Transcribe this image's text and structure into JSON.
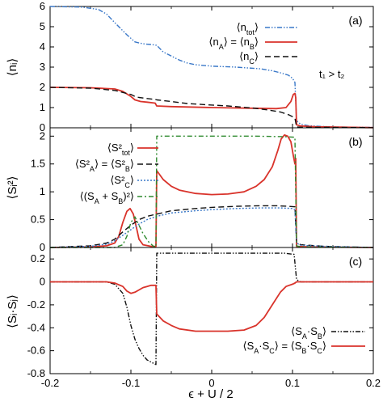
{
  "chart_data": [
    {
      "type": "line",
      "panel_label": "(a)",
      "ylabel": "⟨nᵢ⟩",
      "xlim": [
        -0.2,
        0.2
      ],
      "ylim": [
        0,
        6
      ],
      "x_ticks": [
        -0.2,
        -0.1,
        0,
        0.1,
        0.2
      ],
      "y_ticks": [
        0,
        1,
        2,
        3,
        4,
        5,
        6
      ],
      "y_tick_labels": [
        "0",
        "1",
        "2",
        "3",
        "4",
        "5",
        "6"
      ],
      "annotation": "t₁ > t₂",
      "legend_position": "top-right",
      "series": [
        {
          "name": "⟨n_tot⟩",
          "color": "#3a78c8",
          "dash": "dash-dot-dot",
          "points": [
            [
              -0.2,
              6.0
            ],
            [
              -0.16,
              5.97
            ],
            [
              -0.14,
              5.85
            ],
            [
              -0.13,
              5.62
            ],
            [
              -0.12,
              5.2
            ],
            [
              -0.115,
              5.0
            ],
            [
              -0.105,
              4.6
            ],
            [
              -0.095,
              4.25
            ],
            [
              -0.085,
              4.15
            ],
            [
              -0.075,
              4.12
            ],
            [
              -0.068,
              4.08
            ],
            [
              -0.06,
              3.75
            ],
            [
              -0.05,
              3.55
            ],
            [
              -0.04,
              3.35
            ],
            [
              -0.03,
              3.2
            ],
            [
              -0.02,
              3.12
            ],
            [
              0.0,
              3.05
            ],
            [
              0.03,
              3.0
            ],
            [
              0.06,
              2.92
            ],
            [
              0.075,
              2.82
            ],
            [
              0.085,
              2.72
            ],
            [
              0.095,
              2.6
            ],
            [
              0.1,
              2.45
            ],
            [
              0.103,
              2.25
            ],
            [
              0.105,
              0.35
            ],
            [
              0.11,
              0.18
            ],
            [
              0.12,
              0.1
            ],
            [
              0.15,
              0.04
            ],
            [
              0.2,
              0.02
            ]
          ]
        },
        {
          "name": "⟨n_A⟩ = ⟨n_B⟩",
          "color": "#d9332b",
          "dash": "solid",
          "points": [
            [
              -0.2,
              2.0
            ],
            [
              -0.15,
              1.98
            ],
            [
              -0.12,
              1.92
            ],
            [
              -0.11,
              1.8
            ],
            [
              -0.1,
              1.55
            ],
            [
              -0.095,
              1.38
            ],
            [
              -0.088,
              1.3
            ],
            [
              -0.08,
              1.27
            ],
            [
              -0.07,
              1.22
            ],
            [
              -0.068,
              1.08
            ],
            [
              -0.05,
              1.05
            ],
            [
              0.0,
              1.0
            ],
            [
              0.05,
              0.97
            ],
            [
              0.08,
              0.95
            ],
            [
              0.092,
              1.0
            ],
            [
              0.098,
              1.3
            ],
            [
              0.101,
              1.65
            ],
            [
              0.103,
              1.7
            ],
            [
              0.104,
              1.5
            ],
            [
              0.105,
              0.15
            ],
            [
              0.11,
              0.09
            ],
            [
              0.13,
              0.05
            ],
            [
              0.2,
              0.01
            ]
          ]
        },
        {
          "name": "⟨n_C⟩",
          "color": "#111111",
          "dash": "dashed",
          "points": [
            [
              -0.2,
              2.0
            ],
            [
              -0.15,
              1.96
            ],
            [
              -0.12,
              1.85
            ],
            [
              -0.1,
              1.65
            ],
            [
              -0.095,
              1.55
            ],
            [
              -0.09,
              1.5
            ],
            [
              -0.08,
              1.45
            ],
            [
              -0.07,
              1.4
            ],
            [
              -0.068,
              1.38
            ],
            [
              -0.05,
              1.3
            ],
            [
              -0.03,
              1.2
            ],
            [
              -0.01,
              1.15
            ],
            [
              0.02,
              1.08
            ],
            [
              0.05,
              0.98
            ],
            [
              0.07,
              0.88
            ],
            [
              0.085,
              0.78
            ],
            [
              0.095,
              0.65
            ],
            [
              0.1,
              0.55
            ],
            [
              0.103,
              0.48
            ],
            [
              0.105,
              0.05
            ],
            [
              0.11,
              0.03
            ],
            [
              0.2,
              0.01
            ]
          ]
        }
      ]
    },
    {
      "type": "line",
      "panel_label": "(b)",
      "ylabel": "⟨Sᵢ²⟩",
      "xlim": [
        -0.2,
        0.2
      ],
      "ylim": [
        0,
        2.15
      ],
      "x_ticks": [
        -0.2,
        -0.1,
        0,
        0.1,
        0.2
      ],
      "y_ticks": [
        0,
        0.5,
        1,
        1.5,
        2
      ],
      "y_tick_labels": [
        "0",
        "0.5",
        "1",
        "1.5",
        "2"
      ],
      "legend_position": "top-left",
      "series": [
        {
          "name": "⟨S²_tot⟩",
          "color": "#d9332b",
          "dash": "solid",
          "points": [
            [
              -0.2,
              0.0
            ],
            [
              -0.15,
              0.01
            ],
            [
              -0.13,
              0.03
            ],
            [
              -0.12,
              0.08
            ],
            [
              -0.115,
              0.2
            ],
            [
              -0.11,
              0.45
            ],
            [
              -0.105,
              0.65
            ],
            [
              -0.101,
              0.7
            ],
            [
              -0.097,
              0.6
            ],
            [
              -0.093,
              0.35
            ],
            [
              -0.09,
              0.15
            ],
            [
              -0.085,
              0.05
            ],
            [
              -0.075,
              0.02
            ],
            [
              -0.069,
              0.02
            ],
            [
              -0.068,
              1.38
            ],
            [
              -0.06,
              1.22
            ],
            [
              -0.05,
              1.1
            ],
            [
              -0.04,
              1.03
            ],
            [
              -0.02,
              0.97
            ],
            [
              0.0,
              0.95
            ],
            [
              0.02,
              0.96
            ],
            [
              0.04,
              1.0
            ],
            [
              0.055,
              1.1
            ],
            [
              0.065,
              1.22
            ],
            [
              0.075,
              1.45
            ],
            [
              0.082,
              1.75
            ],
            [
              0.086,
              1.95
            ],
            [
              0.09,
              2.02
            ],
            [
              0.094,
              2.0
            ],
            [
              0.098,
              1.9
            ],
            [
              0.101,
              1.65
            ],
            [
              0.103,
              1.5
            ],
            [
              0.104,
              1.6
            ],
            [
              0.105,
              0.02
            ],
            [
              0.12,
              0.01
            ],
            [
              0.2,
              0.0
            ]
          ]
        },
        {
          "name": "⟨S²_A⟩ = ⟨S²_B⟩",
          "color": "#111111",
          "dash": "dashed",
          "points": [
            [
              -0.2,
              0.0
            ],
            [
              -0.15,
              0.03
            ],
            [
              -0.13,
              0.08
            ],
            [
              -0.12,
              0.15
            ],
            [
              -0.11,
              0.28
            ],
            [
              -0.1,
              0.4
            ],
            [
              -0.09,
              0.5
            ],
            [
              -0.08,
              0.56
            ],
            [
              -0.068,
              0.6
            ],
            [
              -0.05,
              0.66
            ],
            [
              -0.02,
              0.7
            ],
            [
              0.0,
              0.72
            ],
            [
              0.03,
              0.74
            ],
            [
              0.06,
              0.75
            ],
            [
              0.08,
              0.75
            ],
            [
              0.095,
              0.74
            ],
            [
              0.103,
              0.73
            ],
            [
              0.105,
              0.1
            ],
            [
              0.11,
              0.05
            ],
            [
              0.14,
              0.02
            ],
            [
              0.2,
              0.0
            ]
          ]
        },
        {
          "name": "⟨S²_C⟩",
          "color": "#3a78c8",
          "dash": "dotted",
          "points": [
            [
              -0.2,
              0.0
            ],
            [
              -0.15,
              0.02
            ],
            [
              -0.13,
              0.06
            ],
            [
              -0.12,
              0.12
            ],
            [
              -0.11,
              0.22
            ],
            [
              -0.1,
              0.32
            ],
            [
              -0.09,
              0.42
            ],
            [
              -0.08,
              0.5
            ],
            [
              -0.068,
              0.56
            ],
            [
              -0.05,
              0.62
            ],
            [
              -0.02,
              0.66
            ],
            [
              0.0,
              0.68
            ],
            [
              0.03,
              0.7
            ],
            [
              0.06,
              0.71
            ],
            [
              0.085,
              0.71
            ],
            [
              0.1,
              0.7
            ],
            [
              0.103,
              0.68
            ],
            [
              0.105,
              0.08
            ],
            [
              0.11,
              0.04
            ],
            [
              0.14,
              0.02
            ],
            [
              0.2,
              0.0
            ]
          ]
        },
        {
          "name": "⟨(S_A + S_B)²⟩",
          "color": "#2f8a2f",
          "dash": "dash-dot",
          "points": [
            [
              -0.2,
              0.0
            ],
            [
              -0.12,
              0.0
            ],
            [
              -0.11,
              0.05
            ],
            [
              -0.105,
              0.2
            ],
            [
              -0.1,
              0.45
            ],
            [
              -0.095,
              0.55
            ],
            [
              -0.09,
              0.4
            ],
            [
              -0.085,
              0.25
            ],
            [
              -0.078,
              0.1
            ],
            [
              -0.072,
              0.02
            ],
            [
              -0.069,
              0.01
            ],
            [
              -0.068,
              2.0
            ],
            [
              0.0,
              2.0
            ],
            [
              0.05,
              2.0
            ],
            [
              0.09,
              1.99
            ],
            [
              0.103,
              1.98
            ],
            [
              0.105,
              0.03
            ],
            [
              0.11,
              0.01
            ],
            [
              0.2,
              0.0
            ]
          ]
        }
      ]
    },
    {
      "type": "line",
      "panel_label": "(c)",
      "ylabel": "⟨Sᵢ·Sⱼ⟩",
      "xlabel": "ϵ + U / 2",
      "xlim": [
        -0.2,
        0.2
      ],
      "ylim": [
        -0.8,
        0.3
      ],
      "x_ticks": [
        -0.2,
        -0.1,
        0,
        0.1,
        0.2
      ],
      "x_tick_labels": [
        "-0.2",
        "-0.1",
        "0",
        "0.1",
        "0.2"
      ],
      "y_ticks": [
        -0.8,
        -0.6,
        -0.4,
        -0.2,
        0,
        0.2
      ],
      "y_tick_labels": [
        "-0.8",
        "-0.6",
        "-0.4",
        "-0.2",
        "0",
        "0.2"
      ],
      "legend_position": "bottom-right",
      "series": [
        {
          "name": "⟨S_A·S_B⟩",
          "color": "#111111",
          "dash": "dash-dot-dot",
          "points": [
            [
              -0.2,
              0.0
            ],
            [
              -0.13,
              0.0
            ],
            [
              -0.12,
              -0.02
            ],
            [
              -0.11,
              -0.1
            ],
            [
              -0.105,
              -0.22
            ],
            [
              -0.1,
              -0.38
            ],
            [
              -0.095,
              -0.5
            ],
            [
              -0.09,
              -0.58
            ],
            [
              -0.085,
              -0.64
            ],
            [
              -0.08,
              -0.68
            ],
            [
              -0.075,
              -0.7
            ],
            [
              -0.069,
              -0.72
            ],
            [
              -0.068,
              0.25
            ],
            [
              0.0,
              0.25
            ],
            [
              0.05,
              0.25
            ],
            [
              0.09,
              0.25
            ],
            [
              0.102,
              0.24
            ],
            [
              0.105,
              0.02
            ],
            [
              0.11,
              0.0
            ],
            [
              0.2,
              0.0
            ]
          ]
        },
        {
          "name": "⟨S_A·S_C⟩ = ⟨S_B·S_C⟩",
          "color": "#d9332b",
          "dash": "solid",
          "points": [
            [
              -0.2,
              0.0
            ],
            [
              -0.13,
              0.0
            ],
            [
              -0.12,
              -0.01
            ],
            [
              -0.11,
              -0.04
            ],
            [
              -0.105,
              -0.08
            ],
            [
              -0.1,
              -0.1
            ],
            [
              -0.095,
              -0.09
            ],
            [
              -0.09,
              -0.07
            ],
            [
              -0.085,
              -0.05
            ],
            [
              -0.08,
              -0.04
            ],
            [
              -0.075,
              -0.03
            ],
            [
              -0.069,
              -0.03
            ],
            [
              -0.068,
              -0.28
            ],
            [
              -0.06,
              -0.34
            ],
            [
              -0.05,
              -0.38
            ],
            [
              -0.04,
              -0.41
            ],
            [
              -0.02,
              -0.43
            ],
            [
              0.0,
              -0.43
            ],
            [
              0.02,
              -0.43
            ],
            [
              0.04,
              -0.42
            ],
            [
              0.055,
              -0.38
            ],
            [
              0.065,
              -0.31
            ],
            [
              0.075,
              -0.2
            ],
            [
              0.085,
              -0.09
            ],
            [
              0.092,
              -0.04
            ],
            [
              0.1,
              -0.02
            ],
            [
              0.103,
              -0.01
            ],
            [
              0.105,
              0.0
            ],
            [
              0.2,
              0.0
            ]
          ]
        }
      ]
    }
  ]
}
